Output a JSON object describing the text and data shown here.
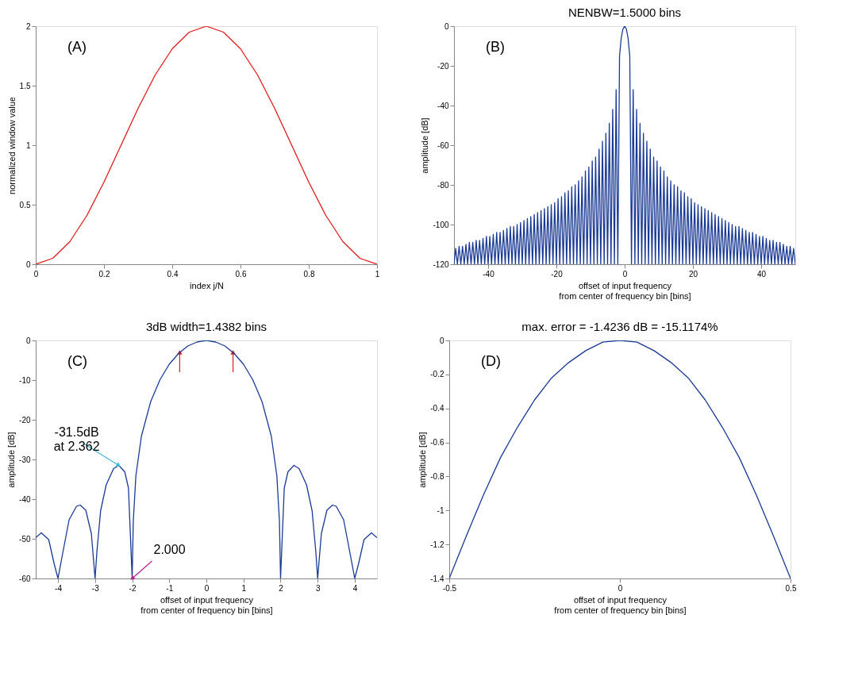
{
  "chart_data": [
    {
      "type": "line",
      "xlabel": "index j/N",
      "ylabel": "normalized window value",
      "xlim": [
        0,
        1
      ],
      "ylim": [
        0,
        2
      ],
      "xticks": [
        0,
        0.2,
        0.4,
        0.6,
        0.8,
        1
      ],
      "yticks": [
        0,
        0.5,
        1,
        1.5,
        2
      ],
      "annotations": [
        "(A)"
      ],
      "series": [
        {
          "color": "#e31a1c",
          "x": [
            0,
            0.05,
            0.1,
            0.15,
            0.2,
            0.25,
            0.3,
            0.35,
            0.4,
            0.45,
            0.5,
            0.55,
            0.6,
            0.65,
            0.7,
            0.75,
            0.8,
            0.85,
            0.9,
            0.95,
            1
          ],
          "values": [
            0,
            0.05,
            0.19,
            0.41,
            0.69,
            1,
            1.31,
            1.59,
            1.81,
            1.95,
            2,
            1.95,
            1.81,
            1.59,
            1.31,
            1,
            0.69,
            0.41,
            0.19,
            0.05,
            0
          ]
        }
      ]
    },
    {
      "type": "line",
      "title": "NENBW=1.5000 bins",
      "xlabel": "offset of input frequency\nfrom center of frequency bin [bins]",
      "ylabel": "amplitude [dB]",
      "xlim": [
        -50,
        50
      ],
      "ylim": [
        -120,
        0
      ],
      "xticks": [
        -40,
        -20,
        0,
        20,
        40
      ],
      "yticks": [
        -120,
        -100,
        -80,
        -60,
        -40,
        -20,
        0
      ],
      "annotations": [
        "(B)"
      ],
      "series": [
        {
          "color": "#1a3a94",
          "x": [
            -50,
            -49.5,
            -49,
            -48.5,
            -48,
            -47.5,
            -47,
            -46.5,
            -46,
            -45.5,
            -45,
            -44.5,
            -44,
            -43.5,
            -43,
            -42.5,
            -42,
            -41.5,
            -41,
            -40.5,
            -40,
            -39.5,
            -39,
            -38.5,
            -38,
            -37.5,
            -37,
            -36.5,
            -36,
            -35.5,
            -35,
            -34.5,
            -34,
            -33.5,
            -33,
            -32.5,
            -32,
            -31.5,
            -31,
            -30.5,
            -30,
            -29.5,
            -29,
            -28.5,
            -28,
            -27.5,
            -27,
            -26.5,
            -26,
            -25.5,
            -25,
            -24.5,
            -24,
            -23.5,
            -23,
            -22.5,
            -22,
            -21.5,
            -21,
            -20.5,
            -20,
            -19.5,
            -19,
            -18.5,
            -18,
            -17.5,
            -17,
            -16.5,
            -16,
            -15.5,
            -15,
            -14.5,
            -14,
            -13.5,
            -13,
            -12.5,
            -12,
            -11.5,
            -11,
            -10.5,
            -10,
            -9.5,
            -9,
            -8.5,
            -8,
            -7.5,
            -7,
            -6.5,
            -6,
            -5.5,
            -5,
            -4.5,
            -4,
            -3.5,
            -3,
            -2.5,
            -2,
            -1.5,
            -1,
            -0.5,
            0,
            0.5,
            1,
            1.5,
            2,
            2.5,
            3,
            3.5,
            4,
            4.5,
            5,
            5.5,
            6,
            6.5,
            7,
            7.5,
            8,
            8.5,
            9,
            9.5,
            10,
            10.5,
            11,
            11.5,
            12,
            12.5,
            13,
            13.5,
            14,
            14.5,
            15,
            15.5,
            16,
            16.5,
            17,
            17.5,
            18,
            18.5,
            19,
            19.5,
            20,
            20.5,
            21,
            21.5,
            22,
            22.5,
            23,
            23.5,
            24,
            24.5,
            25,
            25.5,
            26,
            26.5,
            27,
            27.5,
            28,
            28.5,
            29,
            29.5,
            30,
            30.5,
            31,
            31.5,
            32,
            32.5,
            33,
            33.5,
            34,
            34.5,
            35,
            35.5,
            36,
            36.5,
            37,
            37.5,
            38,
            38.5,
            39,
            39.5,
            40,
            40.5,
            41,
            41.5,
            42,
            42.5,
            43,
            43.5,
            44,
            44.5,
            45,
            45.5,
            46,
            46.5,
            47,
            47.5,
            48,
            48.5,
            49,
            49.5,
            50
          ],
          "values": [
            -120,
            -112,
            -120,
            -111,
            -120,
            -111,
            -120,
            -110,
            -120,
            -109,
            -120,
            -109,
            -120,
            -108,
            -120,
            -108,
            -120,
            -107,
            -120,
            -106,
            -120,
            -106,
            -120,
            -105,
            -120,
            -104,
            -120,
            -104,
            -120,
            -103,
            -120,
            -102,
            -120,
            -101,
            -120,
            -101,
            -120,
            -100,
            -120,
            -99,
            -120,
            -98,
            -120,
            -97,
            -120,
            -96,
            -120,
            -95,
            -120,
            -94,
            -120,
            -93,
            -120,
            -92,
            -120,
            -91,
            -120,
            -90,
            -120,
            -89,
            -120,
            -87,
            -120,
            -86,
            -120,
            -84,
            -120,
            -83,
            -120,
            -81,
            -120,
            -80,
            -120,
            -78,
            -120,
            -76,
            -120,
            -73,
            -120,
            -71,
            -120,
            -68,
            -120,
            -66,
            -120,
            -62,
            -120,
            -58,
            -120,
            -54,
            -120,
            -49,
            -120,
            -42,
            -120,
            -32,
            -120,
            -15,
            -6,
            -1.4,
            0,
            -1.4,
            -6,
            -15,
            -120,
            -32,
            -120,
            -42,
            -120,
            -49,
            -120,
            -54,
            -120,
            -58,
            -120,
            -62,
            -120,
            -66,
            -120,
            -68,
            -120,
            -71,
            -120,
            -73,
            -120,
            -76,
            -120,
            -78,
            -120,
            -80,
            -120,
            -81,
            -120,
            -83,
            -120,
            -84,
            -120,
            -86,
            -120,
            -87,
            -120,
            -89,
            -120,
            -90,
            -120,
            -91,
            -120,
            -92,
            -120,
            -93,
            -120,
            -94,
            -120,
            -95,
            -120,
            -96,
            -120,
            -97,
            -120,
            -98,
            -120,
            -99,
            -120,
            -100,
            -120,
            -101,
            -120,
            -101,
            -120,
            -102,
            -120,
            -103,
            -120,
            -104,
            -120,
            -104,
            -120,
            -105,
            -120,
            -106,
            -120,
            -106,
            -120,
            -107,
            -120,
            -108,
            -120,
            -108,
            -120,
            -109,
            -120,
            -109,
            -120,
            -110,
            -120,
            -111,
            -120,
            -111,
            -120,
            -112,
            -120
          ]
        }
      ]
    },
    {
      "type": "line",
      "title": "3dB width=1.4382 bins",
      "xlabel": "offset of input frequency\nfrom center of frequency bin [bins]",
      "ylabel": "amplitude [dB]",
      "xlim": [
        -4.6,
        4.6
      ],
      "ylim": [
        -60,
        0
      ],
      "xticks": [
        -4,
        -3,
        -2,
        -1,
        0,
        1,
        2,
        3,
        4
      ],
      "yticks": [
        -60,
        -50,
        -40,
        -30,
        -20,
        -10,
        0
      ],
      "annotations": [
        "(C)",
        {
          "text": "-31.5dB\nat 2.362",
          "x": -2.362,
          "y": -31.5
        },
        {
          "text": "2.000",
          "x": -2,
          "y": -60
        }
      ],
      "series": [
        {
          "type": "scatter",
          "marker": "triangle",
          "color": "#e31a1c",
          "x": [
            -0.7191,
            0.7191
          ],
          "values": [
            -3,
            -3
          ],
          "errors": [
            [
              -8,
              -3
            ],
            [
              -8,
              -3
            ]
          ]
        },
        {
          "color": "#1a3a94",
          "x": [
            -4.6,
            -4.45,
            -4.25,
            -4.1,
            -4,
            -3.9,
            -3.7,
            -3.5,
            -3.4,
            -3.25,
            -3.1,
            -3,
            -2.95,
            -2.85,
            -2.7,
            -2.5,
            -2.362,
            -2.2,
            -2.1,
            -2,
            -1.97,
            -1.9,
            -1.75,
            -1.5,
            -1.25,
            -1,
            -0.75,
            -0.5,
            -0.25,
            0,
            0.25,
            0.5,
            0.75,
            1,
            1.25,
            1.5,
            1.75,
            1.9,
            1.97,
            2,
            2.1,
            2.2,
            2.362,
            2.5,
            2.7,
            2.85,
            2.95,
            3,
            3.1,
            3.25,
            3.4,
            3.5,
            3.7,
            3.9,
            4,
            4.1,
            4.25,
            4.45,
            4.6
          ],
          "values": [
            -49.7,
            -48.5,
            -50.2,
            -56.4,
            -60,
            -55,
            -45.2,
            -41.8,
            -41.5,
            -42.8,
            -48.7,
            -60,
            -53.2,
            -42.9,
            -36.4,
            -32.3,
            -31.5,
            -33.1,
            -37.2,
            -60,
            -45.6,
            -34.1,
            -24.1,
            -15.4,
            -9.9,
            -6,
            -3.3,
            -1.4,
            -0.4,
            0,
            -0.4,
            -1.4,
            -3.3,
            -6,
            -9.9,
            -15.4,
            -24.1,
            -34.1,
            -45.6,
            -60,
            -37.2,
            -33.1,
            -31.5,
            -32.3,
            -36.4,
            -42.9,
            -53.2,
            -60,
            -48.7,
            -42.8,
            -41.5,
            -41.8,
            -45.2,
            -55,
            -60,
            -56.4,
            -50.2,
            -48.5,
            -49.7
          ]
        }
      ]
    },
    {
      "type": "line",
      "title": "max. error = -1.4236 dB = -15.1174%",
      "xlabel": "offset of input frequency\nfrom center of frequency bin [bins]",
      "ylabel": "amplitude [dB]",
      "xlim": [
        -0.5,
        0.5
      ],
      "ylim": [
        -1.4,
        0
      ],
      "xticks": [
        -0.5,
        0,
        0.5
      ],
      "yticks": [
        -1.4,
        -1.2,
        -1,
        -0.8,
        -0.6,
        -0.4,
        -0.2,
        0
      ],
      "annotations": [
        "(D)"
      ],
      "series": [
        {
          "color": "#1a3a94",
          "x": [
            -0.5,
            -0.45,
            -0.4,
            -0.35,
            -0.3,
            -0.25,
            -0.2,
            -0.15,
            -0.1,
            -0.05,
            0,
            0.05,
            0.1,
            0.15,
            0.2,
            0.25,
            0.3,
            0.35,
            0.4,
            0.45,
            0.5
          ],
          "values": [
            -1.4,
            -1.15,
            -0.91,
            -0.69,
            -0.51,
            -0.35,
            -0.22,
            -0.13,
            -0.06,
            -0.01,
            0,
            -0.01,
            -0.06,
            -0.13,
            -0.22,
            -0.35,
            -0.51,
            -0.69,
            -0.91,
            -1.15,
            -1.4
          ]
        }
      ]
    }
  ]
}
